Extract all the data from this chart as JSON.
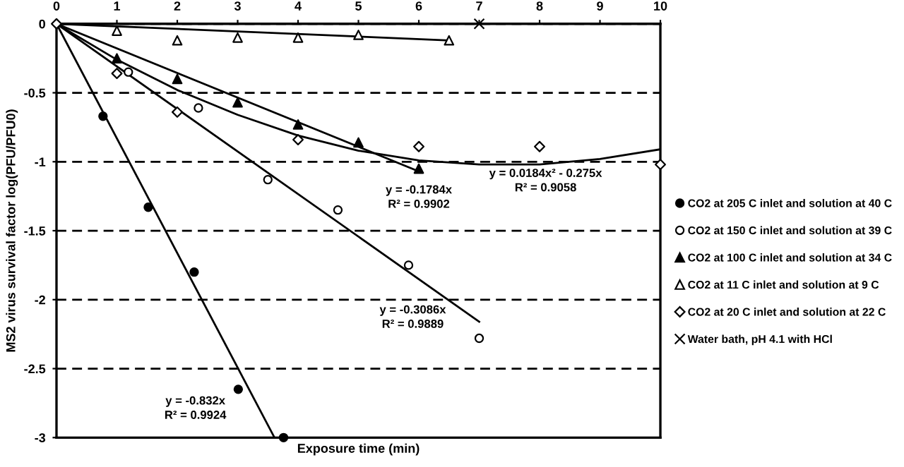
{
  "chart_data": {
    "type": "scatter",
    "xlabel": "Exposure time (min)",
    "ylabel": "MS2 virus survival factor log(PFU/PFU0)",
    "xlim": [
      0,
      10
    ],
    "ylim": [
      -3,
      0
    ],
    "xticks": [
      0,
      1,
      2,
      3,
      4,
      5,
      6,
      7,
      8,
      9,
      10
    ],
    "yticks": [
      0,
      -0.5,
      -1,
      -1.5,
      -2,
      -2.5,
      -3
    ],
    "grid": "y",
    "legend": "right",
    "series": [
      {
        "name": "CO2 at 205 C inlet and solution at 40 C",
        "color": "#000000",
        "marker": "circle",
        "x": [
          0.77,
          1.52,
          2.28,
          3.01,
          3.76
        ],
        "values": [
          -0.67,
          -1.33,
          -1.8,
          -2.65,
          -3
        ]
      },
      {
        "name": "CO2 at 150 C inlet and solution at 39 C",
        "color": "#000000",
        "marker": "circle",
        "x": [
          1.19,
          2.35,
          3.5,
          4.66,
          5.83,
          7
        ],
        "values": [
          -0.35,
          -0.61,
          -1.13,
          -1.35,
          -1.75,
          -2.28
        ]
      },
      {
        "name": "CO2 at 100 C inlet and solution at 34 C",
        "color": "#000000",
        "marker": "triangle",
        "x": [
          1,
          2,
          3,
          4,
          5,
          6
        ],
        "values": [
          -0.25,
          -0.4,
          -0.57,
          -0.73,
          -0.86,
          -1.05
        ]
      },
      {
        "name": "CO2 at 11 C inlet and solution at 9 C",
        "color": "#000000",
        "marker": "triangle",
        "x": [
          1,
          2,
          3,
          4,
          5,
          6.5
        ],
        "values": [
          -0.05,
          -0.12,
          -0.1,
          -0.1,
          -0.08,
          -0.12
        ]
      },
      {
        "name": "CO2 at 20 C inlet and solution at 22 C",
        "color": "#000000",
        "marker": "diamond",
        "x": [
          0,
          1,
          2,
          4,
          6,
          8,
          10
        ],
        "values": [
          0,
          -0.36,
          -0.64,
          -0.84,
          -0.89,
          -0.89,
          -1.02
        ]
      },
      {
        "name": "Water bath, pH 4.1 with HCl",
        "color": "#000000",
        "marker": "cross",
        "x": [
          7
        ],
        "values": [
          0
        ]
      },
      {
        "type": "line",
        "color": "#000000",
        "x": [
          0,
          3.61
        ],
        "values": [
          0,
          -3
        ]
      },
      {
        "type": "line",
        "color": "#000000",
        "x": [
          0,
          7
        ],
        "values": [
          0,
          -2.16
        ]
      },
      {
        "type": "line",
        "color": "#000000",
        "x": [
          0,
          6
        ],
        "values": [
          0,
          -1.07
        ]
      },
      {
        "type": "line",
        "color": "#000000",
        "x": [
          0,
          6.5
        ],
        "values": [
          0,
          -0.12
        ]
      },
      {
        "type": "line",
        "color": "#000000",
        "x": [
          0,
          1,
          2,
          3,
          4,
          5,
          6,
          7,
          8,
          9,
          10
        ],
        "values": [
          0,
          -0.26,
          -0.48,
          -0.66,
          -0.81,
          -0.92,
          -0.99,
          -1.02,
          -1.02,
          -0.98,
          -0.91
        ]
      }
    ],
    "annotations": [
      "y = -0.832x\nR² = 0.9924",
      "y = -0.1784x\nR² = 0.9902",
      "y = -0.3086x\nR² = 0.9889",
      "y = 0.0184x² - 0.275x\nR² = 0.9058"
    ]
  }
}
